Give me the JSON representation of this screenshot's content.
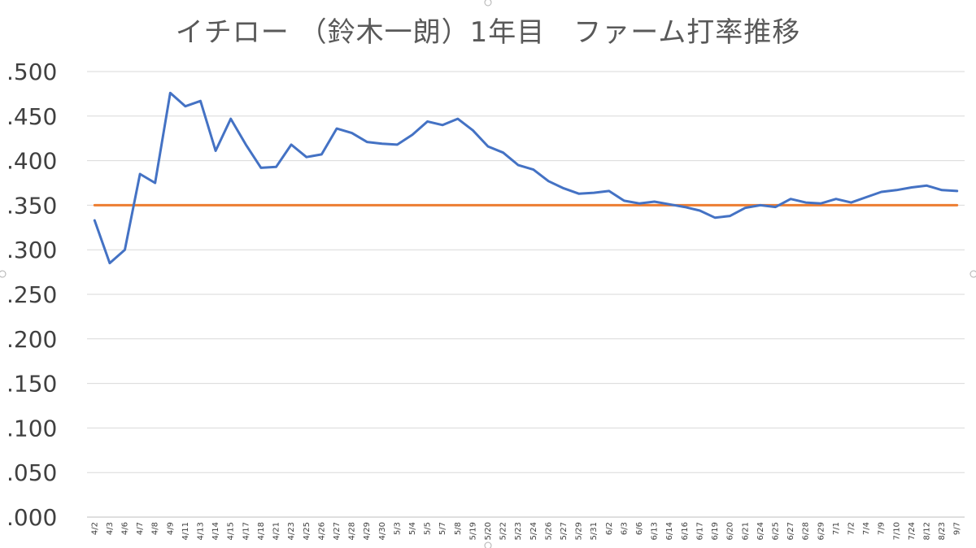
{
  "chart_data": {
    "type": "line",
    "title": "イチロー （鈴木一朗）1年目　ファーム打率推移",
    "xlabel": "",
    "ylabel": "",
    "ylim": [
      0,
      0.5
    ],
    "yticks": [
      ".000",
      ".050",
      ".100",
      ".150",
      ".200",
      ".250",
      ".300",
      ".350",
      ".400",
      ".450",
      ".500"
    ],
    "grid": true,
    "legend": "none",
    "categories": [
      "4/2",
      "4/3",
      "4/6",
      "4/7",
      "4/8",
      "4/9",
      "4/11",
      "4/13",
      "4/14",
      "4/15",
      "4/17",
      "4/18",
      "4/21",
      "4/23",
      "4/25",
      "4/26",
      "4/27",
      "4/28",
      "4/29",
      "4/30",
      "5/3",
      "5/4",
      "5/5",
      "5/7",
      "5/8",
      "5/19",
      "5/20",
      "5/22",
      "5/23",
      "5/24",
      "5/26",
      "5/27",
      "5/29",
      "5/31",
      "6/2",
      "6/3",
      "6/6",
      "6/13",
      "6/14",
      "6/16",
      "6/17",
      "6/19",
      "6/20",
      "6/21",
      "6/24",
      "6/25",
      "6/27",
      "6/28",
      "6/29",
      "7/1",
      "7/2",
      "7/4",
      "7/9",
      "7/10",
      "7/24",
      "8/12",
      "8/23",
      "9/7"
    ],
    "series": [
      {
        "color": "#4472c4",
        "values": [
          0.333,
          0.285,
          0.3,
          0.385,
          0.375,
          0.476,
          0.461,
          0.467,
          0.411,
          0.447,
          0.418,
          0.392,
          0.393,
          0.418,
          0.404,
          0.407,
          0.436,
          0.431,
          0.421,
          0.419,
          0.418,
          0.429,
          0.444,
          0.44,
          0.447,
          0.434,
          0.416,
          0.409,
          0.395,
          0.39,
          0.377,
          0.369,
          0.363,
          0.364,
          0.366,
          0.355,
          0.352,
          0.354,
          0.351,
          0.348,
          0.344,
          0.336,
          0.338,
          0.347,
          0.35,
          0.348,
          0.357,
          0.353,
          0.352,
          0.357,
          0.353,
          0.359,
          0.365,
          0.367,
          0.37,
          0.372,
          0.367,
          0.366
        ]
      },
      {
        "color": "#ed7d31",
        "values": [
          0.35,
          0.35,
          0.35,
          0.35,
          0.35,
          0.35,
          0.35,
          0.35,
          0.35,
          0.35,
          0.35,
          0.35,
          0.35,
          0.35,
          0.35,
          0.35,
          0.35,
          0.35,
          0.35,
          0.35,
          0.35,
          0.35,
          0.35,
          0.35,
          0.35,
          0.35,
          0.35,
          0.35,
          0.35,
          0.35,
          0.35,
          0.35,
          0.35,
          0.35,
          0.35,
          0.35,
          0.35,
          0.35,
          0.35,
          0.35,
          0.35,
          0.35,
          0.35,
          0.35,
          0.35,
          0.35,
          0.35,
          0.35,
          0.35,
          0.35,
          0.35,
          0.35,
          0.35,
          0.35,
          0.35,
          0.35,
          0.35,
          0.35
        ]
      }
    ]
  }
}
